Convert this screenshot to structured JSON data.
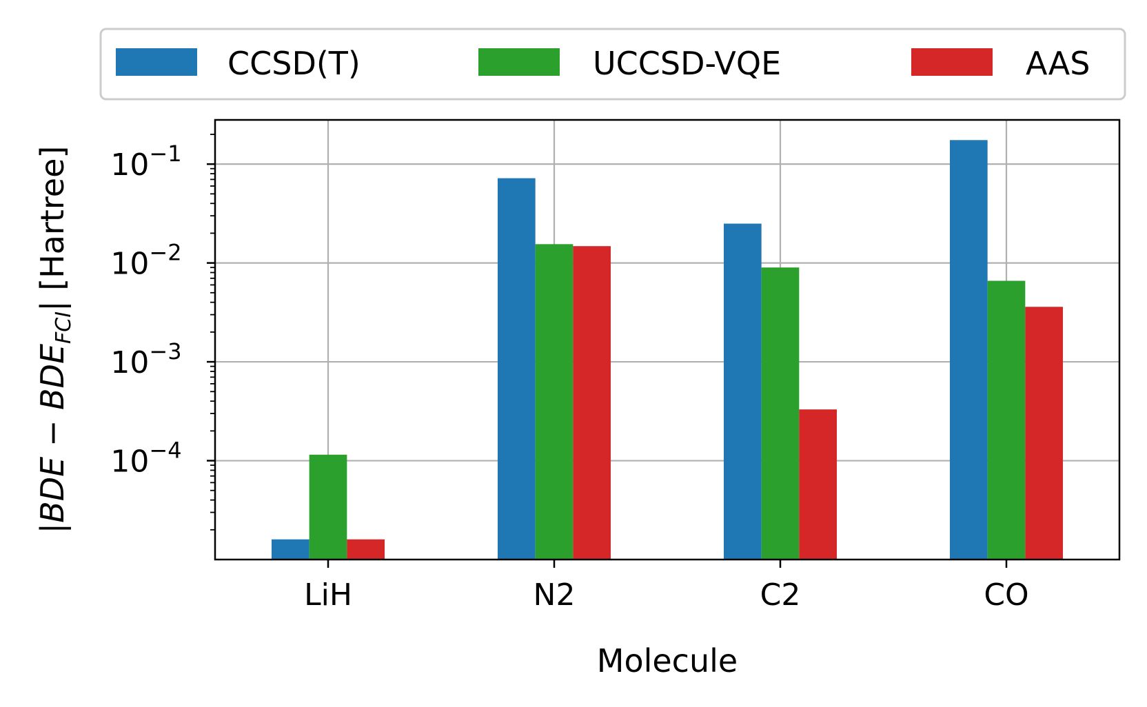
{
  "chart_data": {
    "type": "bar",
    "categories": [
      "LiH",
      "N2",
      "C2",
      "CO"
    ],
    "series": [
      {
        "name": "CCSD(T)",
        "color": "#1f77b4",
        "values": [
          1.6e-05,
          0.072,
          0.025,
          0.175
        ]
      },
      {
        "name": "UCCSD-VQE",
        "color": "#2ca02c",
        "values": [
          0.000115,
          0.0155,
          0.009,
          0.0066
        ]
      },
      {
        "name": "AAS",
        "color": "#d62728",
        "values": [
          1.6e-05,
          0.0148,
          0.00033,
          0.0036
        ]
      }
    ],
    "xlabel": "Molecule",
    "ylabel": {
      "prefix": "|",
      "a": "BDE",
      "minus": " − ",
      "b": "BDE",
      "sub": "FCI",
      "suffix": "| [Hartree]"
    },
    "yscale": "log",
    "ylim": [
      1e-05,
      0.28
    ],
    "yticks": [
      {
        "value": 0.0001,
        "base": "10",
        "exp": "−4"
      },
      {
        "value": 0.001,
        "base": "10",
        "exp": "−3"
      },
      {
        "value": 0.01,
        "base": "10",
        "exp": "−2"
      },
      {
        "value": 0.1,
        "base": "10",
        "exp": "−1"
      }
    ],
    "grid": true,
    "legend_position": "top"
  }
}
